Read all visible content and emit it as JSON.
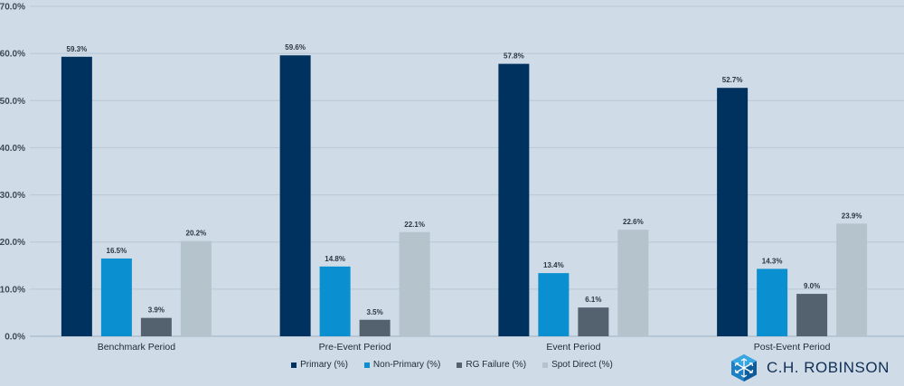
{
  "chart_data": {
    "type": "bar",
    "categories": [
      "Benchmark Period",
      "Pre-Event Period",
      "Event Period",
      "Post-Event Period"
    ],
    "series": [
      {
        "name": "Primary (%)",
        "color": "#00325f",
        "values": [
          59.3,
          59.6,
          57.8,
          52.7
        ]
      },
      {
        "name": "Non-Primary (%)",
        "color": "#0a8fd0",
        "values": [
          16.5,
          14.8,
          13.4,
          14.3
        ]
      },
      {
        "name": "RG Failure (%)",
        "color": "#54616f",
        "values": [
          3.9,
          3.5,
          6.1,
          9.0
        ]
      },
      {
        "name": "Spot Direct (%)",
        "color": "#b5c3cd",
        "values": [
          20.2,
          22.1,
          22.6,
          23.9
        ]
      }
    ],
    "ylim": [
      0,
      70
    ],
    "yticks": [
      "0.0%",
      "10.0%",
      "20.0%",
      "30.0%",
      "40.0%",
      "50.0%",
      "60.0%",
      "70.0%"
    ],
    "grid": true,
    "legend_position": "bottom"
  },
  "brand": {
    "name": "C.H. ROBINSON",
    "logo_icon": "cube-logo-icon",
    "color": "#0f2f55"
  }
}
